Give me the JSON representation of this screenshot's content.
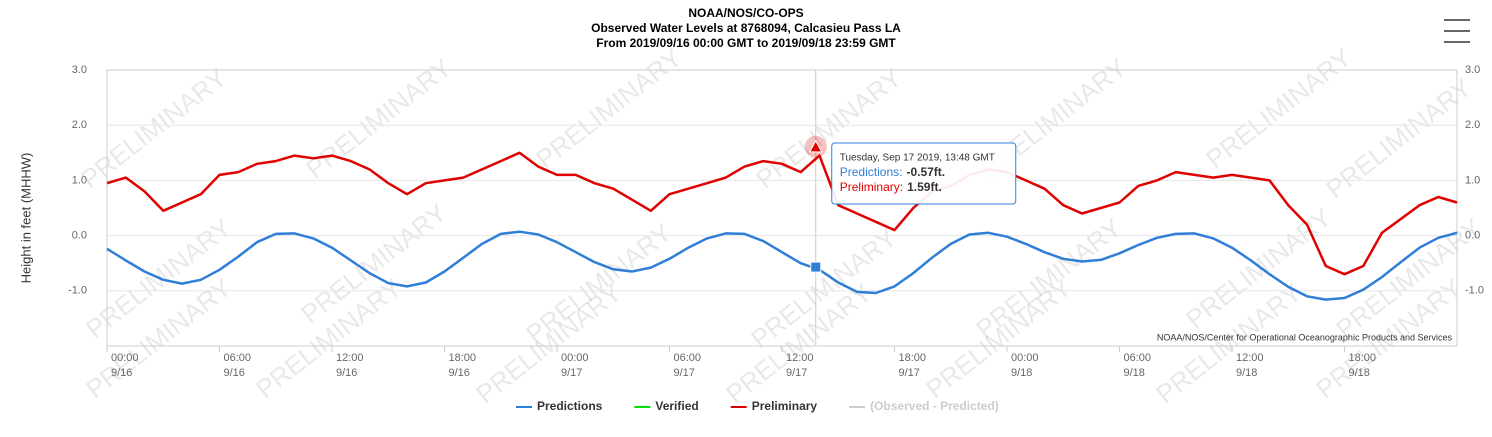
{
  "chart_data": {
    "type": "line",
    "title": [
      "NOAA/NOS/CO-OPS",
      "Observed Water Levels at 8768094, Calcasieu Pass LA",
      "From 2019/09/16 00:00 GMT to 2019/09/18 23:59 GMT"
    ],
    "y_label": "Height in feet (MHHW)",
    "credit": "NOAA/NOS/Center for Operational Oceanographic Products and Services",
    "watermark": "PRELIMINARY",
    "xlim": [
      0,
      72
    ],
    "xticks": [
      {
        "value": 0,
        "label": "00:00"
      },
      {
        "value": 6,
        "label": "06:00"
      },
      {
        "value": 12,
        "label": "12:00"
      },
      {
        "value": 18,
        "label": "18:00"
      },
      {
        "value": 24,
        "label": "00:00"
      },
      {
        "value": 30,
        "label": "06:00"
      },
      {
        "value": 36,
        "label": "12:00"
      },
      {
        "value": 42,
        "label": "18:00"
      },
      {
        "value": 48,
        "label": "00:00"
      },
      {
        "value": 54,
        "label": "06:00"
      },
      {
        "value": 60,
        "label": "12:00"
      },
      {
        "value": 66,
        "label": "18:00"
      }
    ],
    "xtick_dates": [
      "9/16",
      "9/16",
      "9/16",
      "9/16",
      "9/17",
      "9/17",
      "9/17",
      "9/17",
      "9/18",
      "9/18",
      "9/18",
      "9/18"
    ],
    "ylim": [
      -2,
      3
    ],
    "yticks": [
      {
        "value": 3,
        "label": "3.0"
      },
      {
        "value": 2,
        "label": "2.0"
      },
      {
        "value": 1,
        "label": "1.0"
      },
      {
        "value": 0,
        "label": "0.0"
      },
      {
        "value": -1,
        "label": "-1.0"
      }
    ],
    "grid": true,
    "x": [
      0,
      1,
      2,
      3,
      4,
      5,
      6,
      7,
      8,
      9,
      10,
      11,
      12,
      13,
      14,
      15,
      16,
      17,
      18,
      19,
      20,
      21,
      22,
      23,
      24,
      25,
      26,
      27,
      28,
      29,
      30,
      31,
      32,
      33,
      34,
      35,
      36,
      37,
      38,
      39,
      40,
      41,
      42,
      43,
      44,
      45,
      46,
      47,
      48,
      49,
      50,
      51,
      52,
      53,
      54,
      55,
      56,
      57,
      58,
      59,
      60,
      61,
      62,
      63,
      64,
      65,
      66,
      67,
      68,
      69,
      70,
      71,
      72
    ],
    "series": [
      {
        "name": "Predictions",
        "color": "#2f7ed8",
        "values": [
          -0.24,
          -0.45,
          -0.65,
          -0.8,
          -0.87,
          -0.8,
          -0.62,
          -0.38,
          -0.12,
          0.03,
          0.04,
          -0.05,
          -0.22,
          -0.45,
          -0.68,
          -0.86,
          -0.92,
          -0.85,
          -0.65,
          -0.4,
          -0.15,
          0.03,
          0.07,
          0.02,
          -0.12,
          -0.3,
          -0.48,
          -0.61,
          -0.65,
          -0.58,
          -0.42,
          -0.22,
          -0.05,
          0.04,
          0.03,
          -0.1,
          -0.3,
          -0.5,
          -0.62,
          -0.85,
          -1.02,
          -1.04,
          -0.92,
          -0.68,
          -0.4,
          -0.15,
          0.02,
          0.05,
          -0.02,
          -0.15,
          -0.3,
          -0.42,
          -0.47,
          -0.44,
          -0.32,
          -0.17,
          -0.04,
          0.03,
          0.04,
          -0.05,
          -0.22,
          -0.45,
          -0.7,
          -0.93,
          -1.1,
          -1.16,
          -1.13,
          -0.98,
          -0.75,
          -0.48,
          -0.22,
          -0.04,
          0.05
        ]
      },
      {
        "name": "Preliminary",
        "color": "#e00000",
        "values": [
          0.95,
          1.05,
          0.8,
          0.45,
          0.6,
          0.75,
          1.1,
          1.15,
          1.3,
          1.35,
          1.45,
          1.4,
          1.45,
          1.35,
          1.2,
          0.95,
          0.75,
          0.95,
          1.0,
          1.05,
          1.2,
          1.35,
          1.5,
          1.25,
          1.1,
          1.1,
          0.95,
          0.85,
          0.65,
          0.45,
          0.75,
          0.85,
          0.95,
          1.05,
          1.25,
          1.35,
          1.3,
          1.15,
          1.45,
          0.55,
          0.4,
          0.25,
          0.1,
          0.5,
          0.8,
          0.9,
          1.1,
          1.2,
          1.15,
          1.0,
          0.85,
          0.55,
          0.4,
          0.5,
          0.6,
          0.9,
          1.0,
          1.15,
          1.1,
          1.05,
          1.1,
          1.05,
          1.0,
          0.55,
          0.2,
          -0.55,
          -0.7,
          -0.55,
          0.05,
          0.3,
          0.55,
          0.7,
          0.6
        ]
      }
    ],
    "legend": [
      {
        "name": "Predictions",
        "color": "#2f7ed8"
      },
      {
        "name": "Verified",
        "color": "#00e000"
      },
      {
        "name": "Preliminary",
        "color": "#e00000"
      },
      {
        "name": "(Observed - Predicted)",
        "color": "#cccccc"
      }
    ],
    "tooltip": {
      "header": "Tuesday, Sep 17 2019, 13:48 GMT",
      "x": 37.8,
      "items": [
        {
          "name": "Predictions:",
          "color": "#2f7ed8",
          "value": -0.57,
          "label": "-0.57ft."
        },
        {
          "name": "Preliminary:",
          "color": "#e00000",
          "value": 1.59,
          "label": "1.59ft."
        }
      ]
    }
  }
}
